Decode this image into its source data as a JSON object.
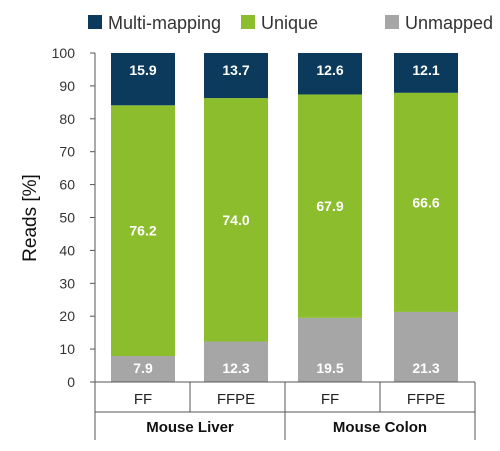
{
  "chart_data": {
    "type": "bar",
    "stacked": true,
    "ylabel": "Reads [%]",
    "ylim": [
      0,
      100
    ],
    "yticks": [
      0,
      10,
      20,
      30,
      40,
      50,
      60,
      70,
      80,
      90,
      100
    ],
    "grid": false,
    "legend_position": "top",
    "categories": [
      "FF",
      "FFPE",
      "FF",
      "FFPE"
    ],
    "groups": [
      {
        "label": "Mouse Liver",
        "categories": [
          "FF",
          "FFPE"
        ]
      },
      {
        "label": "Mouse Colon",
        "categories": [
          "FF",
          "FFPE"
        ]
      }
    ],
    "series": [
      {
        "name": "Unmapped",
        "color": "#a6a6a6",
        "values": [
          7.9,
          12.3,
          19.5,
          21.3
        ],
        "labels": [
          "7.9",
          "12.3",
          "19.5",
          "21.3"
        ]
      },
      {
        "name": "Unique",
        "color": "#8cbd2d",
        "values": [
          76.2,
          74.0,
          67.9,
          66.6
        ],
        "labels": [
          "76.2",
          "74.0",
          "67.9",
          "66.6"
        ]
      },
      {
        "name": "Multi-mapping",
        "color": "#0b3a5c",
        "values": [
          15.9,
          13.7,
          12.6,
          12.1
        ],
        "labels": [
          "15.9",
          "13.7",
          "12.6",
          "12.1"
        ]
      }
    ],
    "legend_order": [
      "Multi-mapping",
      "Unique",
      "Unmapped"
    ]
  }
}
